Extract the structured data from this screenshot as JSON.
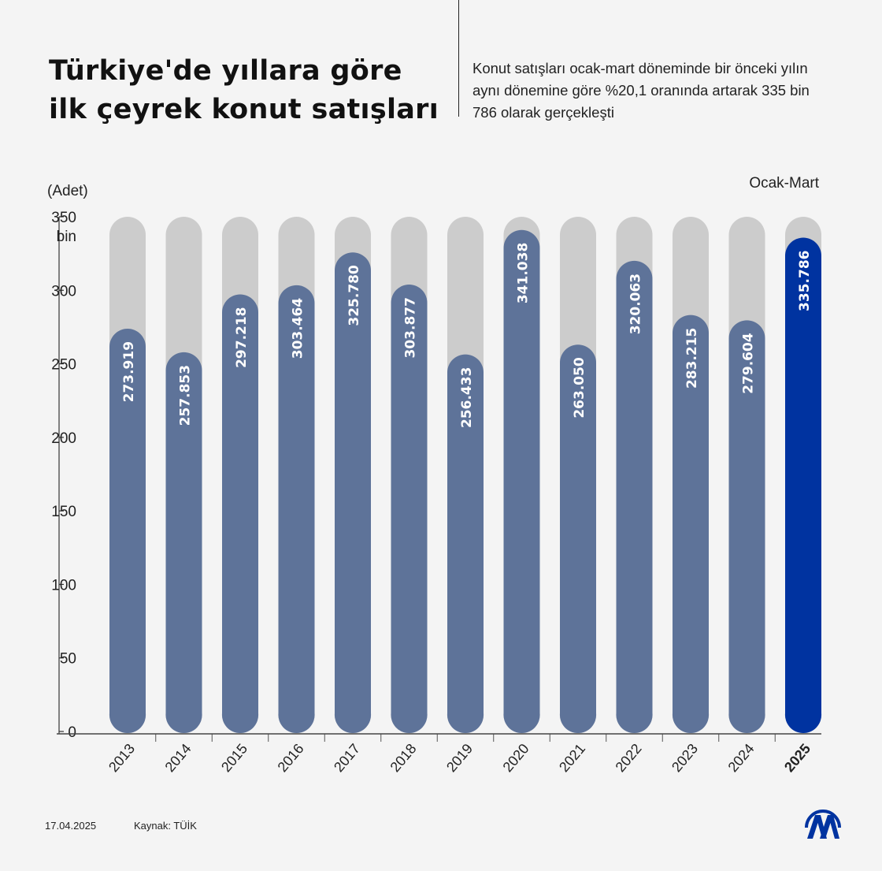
{
  "header": {
    "title_line1": "Türkiye'de yıllara göre",
    "title_line2": "ilk çeyrek konut satışları",
    "subtitle": "Konut satışları ocak-mart döneminde bir önceki yılın aynı dönemine göre %20,1 oranında artarak 335 bin 786 olarak gerçekleşti"
  },
  "chart_data": {
    "type": "bar",
    "ylabel": "(Adet)",
    "period_label": "Ocak-Mart",
    "ylim": [
      0,
      350
    ],
    "yticks": [
      "0",
      "50",
      "100",
      "150",
      "200",
      "250",
      "300",
      "350"
    ],
    "ytick_top_suffix": "bin",
    "categories": [
      "2013",
      "2014",
      "2015",
      "2016",
      "2017",
      "2018",
      "2019",
      "2020",
      "2021",
      "2022",
      "2023",
      "2024",
      "2025"
    ],
    "values": [
      273.919,
      257.853,
      297.218,
      303.464,
      325.78,
      303.877,
      256.433,
      341.038,
      263.05,
      320.063,
      283.215,
      279.604,
      335.786
    ],
    "labels": [
      "273.919",
      "257.853",
      "297.218",
      "303.464",
      "325.780",
      "303.877",
      "256.433",
      "341.038",
      "263.050",
      "320.063",
      "283.215",
      "279.604",
      "335.786"
    ],
    "highlight": "2025",
    "colors": {
      "bar": "#5e7399",
      "highlight": "#0033a0",
      "background_bar": "#cccccc"
    }
  },
  "footer": {
    "date": "17.04.2025",
    "source": "Kaynak: TÜİK",
    "logo": "AA"
  }
}
